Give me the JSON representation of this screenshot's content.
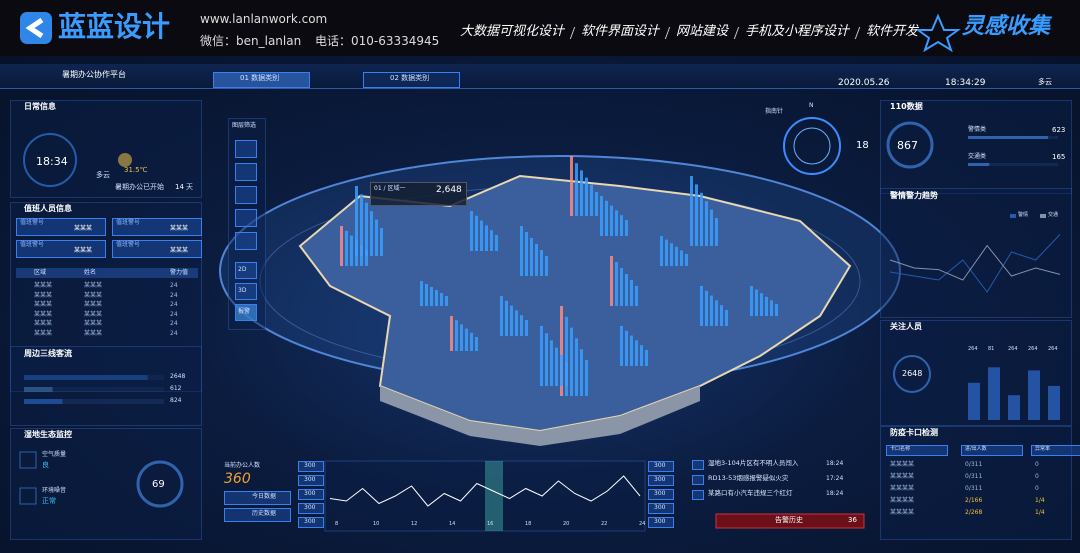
{
  "banner": {
    "brand": "蓝蓝设计",
    "url": "www.lanlanwork.com",
    "wechat": "微信：ben_lanlan",
    "phone": "电话：010-63334945",
    "services": [
      "大数据可视化设计",
      "软件界面设计",
      "网站建设",
      "手机及小程序设计",
      "软件开发"
    ],
    "right_brand": "灵感收集"
  },
  "header": {
    "title": "暑期办公协作平台",
    "tabs": [
      "01 数据类别",
      "02 数据类别"
    ],
    "date": "2020.05.26",
    "time": "18:34:29",
    "weather": "多云"
  },
  "daily": {
    "title": "日常信息",
    "clock": "18:34",
    "weather": "多云",
    "temperature": "31.5℃",
    "started_label": "暑期办公已开始",
    "started_days": "14",
    "started_unit": "天"
  },
  "duty": {
    "title": "值班人员信息",
    "cards": [
      {
        "label": "值班警号",
        "name": "某某某"
      },
      {
        "label": "值班警号",
        "name": "某某某"
      },
      {
        "label": "值班警号",
        "name": "某某某"
      },
      {
        "label": "值班警号",
        "name": "某某某"
      }
    ],
    "table_header": [
      "区域",
      "姓名",
      "警力值"
    ],
    "rows": [
      [
        "某某某",
        "某某某",
        "24"
      ],
      [
        "某某某",
        "某某某",
        "24"
      ],
      [
        "某某某",
        "某某某",
        "24"
      ],
      [
        "某某某",
        "某某某",
        "24"
      ],
      [
        "某某某",
        "某某某",
        "24"
      ],
      [
        "某某某",
        "某某某",
        "24"
      ]
    ]
  },
  "traffic": {
    "title": "周边三线客流",
    "values": [
      2648,
      612,
      824
    ],
    "xlim": [
      0,
      3000
    ],
    "colors": [
      "#3a8cff",
      "#6fd0ff",
      "#2f6fd8"
    ]
  },
  "eco": {
    "title": "湿地生态监控",
    "items": [
      {
        "label": "空气质量",
        "status": "良"
      },
      {
        "label": "环境噪音",
        "status": "正常"
      }
    ],
    "gauge": "69"
  },
  "map": {
    "layer_title": "图层筛选",
    "buttons": [
      "2D",
      "3D",
      "报警"
    ],
    "tooltip_region": "01 / 区域一",
    "tooltip_value": "2,648",
    "compass_title": "指南针",
    "compass_n": "N",
    "compass_value": "18"
  },
  "office": {
    "title": "当前办公人数",
    "value": "360",
    "buttons": [
      "今日数据",
      "历史数据"
    ],
    "axis_labels": [
      "300",
      "300",
      "300",
      "300",
      "300"
    ],
    "x_labels": [
      "8",
      "10",
      "12",
      "14",
      "16",
      "18",
      "20",
      "22",
      "24"
    ],
    "values": [
      35,
      30,
      55,
      25,
      40,
      60,
      20,
      45,
      30,
      65,
      50,
      35,
      55,
      40,
      70,
      45,
      30,
      50,
      80,
      40
    ],
    "ylim": [
      0,
      100
    ]
  },
  "alerts": {
    "items": [
      {
        "text": "湿地3-104片区有不明人员闯入",
        "time": "18:24"
      },
      {
        "text": "RD13-53烟感报警疑似火灾",
        "time": "17:24"
      },
      {
        "text": "某路口有小汽车违规三个红灯",
        "time": "18:24"
      }
    ],
    "history_button": "告警历史",
    "history_count": "36"
  },
  "police110": {
    "title": "110数据",
    "total": "867",
    "items": [
      {
        "label": "警情类",
        "value": 623
      },
      {
        "label": "交通类",
        "value": 165
      }
    ],
    "xlim": [
      0,
      700
    ]
  },
  "trend": {
    "type": "line",
    "title": "警情警力趋势",
    "ylim": [
      0,
      100
    ],
    "series": [
      {
        "name": "警情",
        "color": "#3a8cff",
        "values": [
          45,
          40,
          35,
          60,
          20,
          70,
          60,
          92
        ]
      },
      {
        "name": "交通",
        "color": "#e8eefc",
        "values": [
          60,
          50,
          48,
          35,
          78,
          40,
          50,
          42
        ]
      }
    ]
  },
  "focus": {
    "type": "bar",
    "title": "关注人员",
    "total": "2648",
    "categories": [
      "264",
      "81",
      "264",
      "264",
      "264"
    ],
    "values": [
      60,
      85,
      40,
      80,
      55
    ],
    "ylim": [
      0,
      100
    ],
    "color": "#3a7ff0"
  },
  "checkpoint": {
    "title": "防疫卡口检测",
    "header": [
      "卡口名称",
      "进/出人数",
      "异常率"
    ],
    "rows": [
      [
        "某某某某",
        "0/311",
        "0"
      ],
      [
        "某某某某",
        "0/311",
        "0"
      ],
      [
        "某某某某",
        "0/311",
        "0"
      ],
      [
        "某某某某",
        "2/166",
        "1/4"
      ],
      [
        "某某某某",
        "2/268",
        "1/4"
      ]
    ]
  }
}
